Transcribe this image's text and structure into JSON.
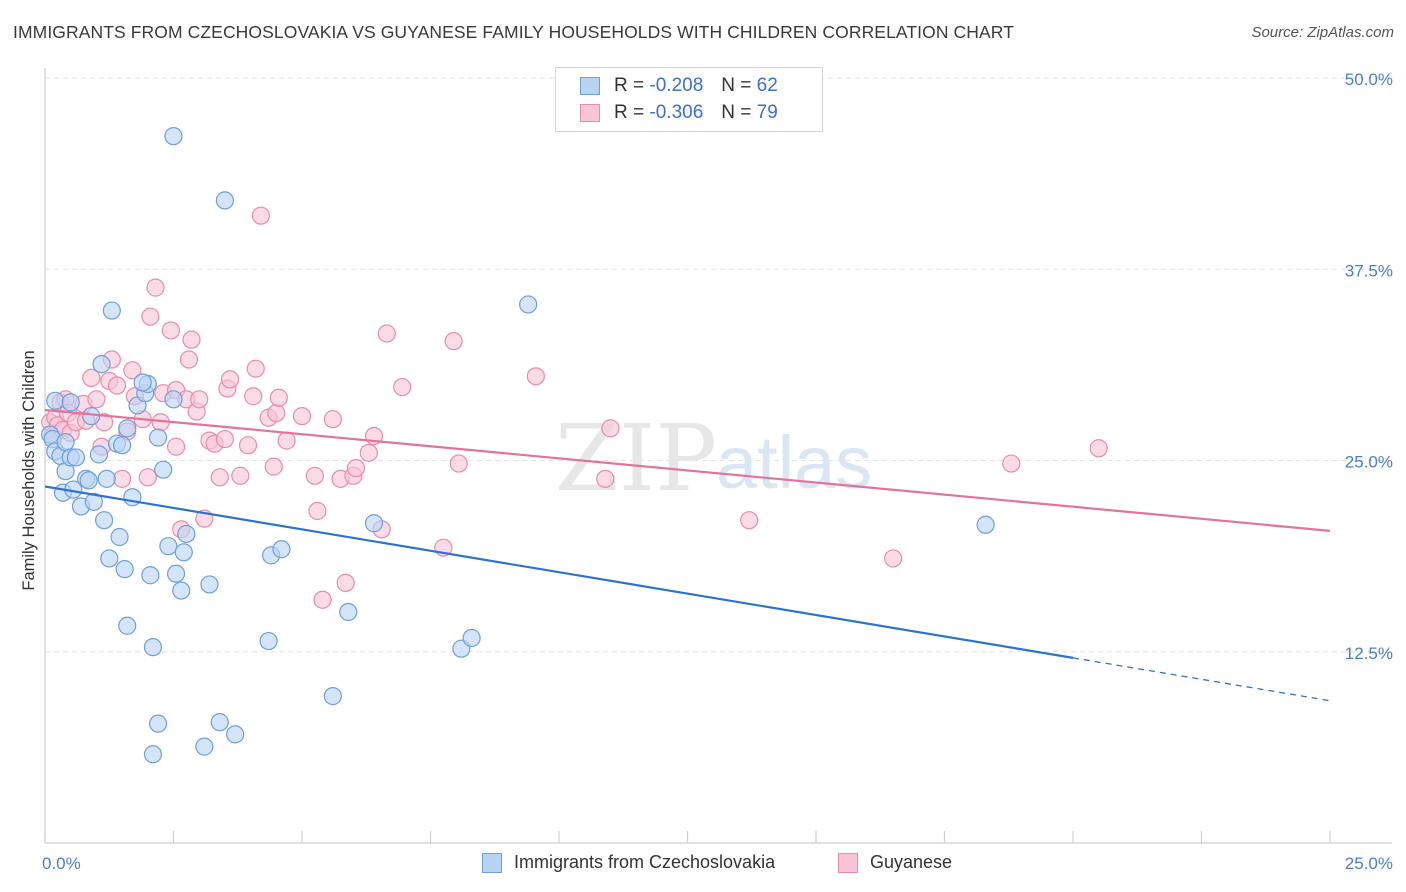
{
  "title": "IMMIGRANTS FROM CZECHOSLOVAKIA VS GUYANESE FAMILY HOUSEHOLDS WITH CHILDREN CORRELATION CHART",
  "source": "Source: ZipAtlas.com",
  "watermark": {
    "zip": "ZIP",
    "atlas": "atlas"
  },
  "legend": {
    "items": [
      {
        "r_label": "R =",
        "r_value": "-0.208",
        "n_label": "N =",
        "n_value": "62"
      },
      {
        "r_label": "R =",
        "r_value": "-0.306",
        "n_label": "N =",
        "n_value": "79"
      }
    ]
  },
  "colors": {
    "blue_fill": "#b9d3f5",
    "blue_stroke": "#6f9fdc",
    "blue_line": "#2f72d2",
    "pink_fill": "#f8c5d5",
    "pink_stroke": "#e98cab",
    "pink_line": "#e2739b",
    "axis_label": "#4a7fd0",
    "grid": "#e3e3e3"
  },
  "chart_data": {
    "type": "scatter",
    "title": "IMMIGRANTS FROM CZECHOSLOVAKIA VS GUYANESE FAMILY HOUSEHOLDS WITH CHILDREN CORRELATION CHART",
    "xlabel": "",
    "ylabel": "Family Households with Children",
    "xlim": [
      0,
      25
    ],
    "ylim": [
      0,
      50
    ],
    "x_tick_labels": [
      "0.0%",
      "25.0%"
    ],
    "y_ticks": [
      12.5,
      25.0,
      37.5,
      50.0
    ],
    "y_tick_labels": [
      "12.5%",
      "25.0%",
      "37.5%",
      "50.0%"
    ],
    "grid": true,
    "legend_position": "top-center",
    "series": [
      {
        "name": "Immigrants from Czechoslovakia",
        "color": "blue",
        "trend": {
          "x0": 0,
          "y0": 23.3,
          "x1": 20,
          "y1": 12.1,
          "dashed_to": 25,
          "dashed_y": 9.3
        },
        "points": [
          [
            0.1,
            26.7
          ],
          [
            0.2,
            28.9
          ],
          [
            0.15,
            26.4
          ],
          [
            0.2,
            25.6
          ],
          [
            0.3,
            25.3
          ],
          [
            0.4,
            26.2
          ],
          [
            0.35,
            22.9
          ],
          [
            0.4,
            24.3
          ],
          [
            0.5,
            25.2
          ],
          [
            0.55,
            23.1
          ],
          [
            0.6,
            25.2
          ],
          [
            0.7,
            22.0
          ],
          [
            0.8,
            23.8
          ],
          [
            0.85,
            23.7
          ],
          [
            0.9,
            27.9
          ],
          [
            0.95,
            22.3
          ],
          [
            1.05,
            25.4
          ],
          [
            1.1,
            31.3
          ],
          [
            1.15,
            21.1
          ],
          [
            1.2,
            23.8
          ],
          [
            1.25,
            18.6
          ],
          [
            1.3,
            34.8
          ],
          [
            1.4,
            26.1
          ],
          [
            1.45,
            20.0
          ],
          [
            1.5,
            26.0
          ],
          [
            1.55,
            17.9
          ],
          [
            1.6,
            27.1
          ],
          [
            1.6,
            14.2
          ],
          [
            1.7,
            22.6
          ],
          [
            1.8,
            28.6
          ],
          [
            1.95,
            29.4
          ],
          [
            2.0,
            30.0
          ],
          [
            2.05,
            17.5
          ],
          [
            2.1,
            12.8
          ],
          [
            2.2,
            7.8
          ],
          [
            2.2,
            26.5
          ],
          [
            2.3,
            24.4
          ],
          [
            2.4,
            19.4
          ],
          [
            2.5,
            46.2
          ],
          [
            2.5,
            29.0
          ],
          [
            2.55,
            17.6
          ],
          [
            2.65,
            16.5
          ],
          [
            2.7,
            19.0
          ],
          [
            2.75,
            20.2
          ],
          [
            3.1,
            6.3
          ],
          [
            3.2,
            16.9
          ],
          [
            3.4,
            7.9
          ],
          [
            3.5,
            42.0
          ],
          [
            3.7,
            7.1
          ],
          [
            4.35,
            13.2
          ],
          [
            4.4,
            18.8
          ],
          [
            4.6,
            19.2
          ],
          [
            5.6,
            9.6
          ],
          [
            5.9,
            15.1
          ],
          [
            6.4,
            20.9
          ],
          [
            2.1,
            5.8
          ],
          [
            8.1,
            12.7
          ],
          [
            8.3,
            13.4
          ],
          [
            9.4,
            35.2
          ],
          [
            18.3,
            20.8
          ],
          [
            1.9,
            30.1
          ],
          [
            0.5,
            28.8
          ]
        ]
      },
      {
        "name": "Guyanese",
        "color": "pink",
        "trend": {
          "x0": 0,
          "y0": 28.3,
          "x1": 25,
          "y1": 20.4
        },
        "points": [
          [
            0.1,
            27.5
          ],
          [
            0.15,
            26.6
          ],
          [
            0.2,
            27.8
          ],
          [
            0.25,
            27.3
          ],
          [
            0.3,
            28.8
          ],
          [
            0.35,
            27.0
          ],
          [
            0.4,
            29.0
          ],
          [
            0.45,
            28.1
          ],
          [
            0.5,
            26.8
          ],
          [
            0.6,
            27.5
          ],
          [
            0.75,
            28.7
          ],
          [
            0.8,
            27.6
          ],
          [
            0.9,
            30.4
          ],
          [
            1.0,
            29.0
          ],
          [
            1.1,
            25.9
          ],
          [
            1.15,
            27.5
          ],
          [
            1.25,
            30.2
          ],
          [
            1.3,
            31.6
          ],
          [
            1.4,
            29.9
          ],
          [
            1.5,
            23.8
          ],
          [
            1.6,
            26.9
          ],
          [
            1.7,
            30.9
          ],
          [
            1.75,
            29.2
          ],
          [
            1.9,
            27.7
          ],
          [
            2.0,
            23.9
          ],
          [
            2.05,
            34.4
          ],
          [
            2.15,
            36.3
          ],
          [
            2.25,
            27.5
          ],
          [
            2.3,
            29.4
          ],
          [
            2.45,
            33.5
          ],
          [
            2.55,
            25.9
          ],
          [
            2.55,
            29.6
          ],
          [
            2.65,
            20.5
          ],
          [
            2.75,
            29.0
          ],
          [
            2.8,
            31.6
          ],
          [
            2.85,
            32.9
          ],
          [
            2.95,
            28.2
          ],
          [
            3.0,
            29.0
          ],
          [
            3.1,
            21.2
          ],
          [
            3.2,
            26.3
          ],
          [
            3.3,
            26.1
          ],
          [
            3.4,
            23.9
          ],
          [
            3.5,
            26.4
          ],
          [
            3.55,
            29.7
          ],
          [
            3.6,
            30.3
          ],
          [
            3.8,
            24.0
          ],
          [
            3.95,
            26.0
          ],
          [
            4.05,
            29.2
          ],
          [
            4.1,
            31.0
          ],
          [
            4.2,
            41.0
          ],
          [
            4.35,
            27.8
          ],
          [
            4.45,
            24.6
          ],
          [
            4.5,
            28.1
          ],
          [
            4.55,
            29.1
          ],
          [
            4.7,
            26.3
          ],
          [
            5.0,
            27.9
          ],
          [
            5.25,
            24.0
          ],
          [
            5.3,
            21.7
          ],
          [
            5.4,
            15.9
          ],
          [
            5.6,
            27.7
          ],
          [
            5.75,
            23.8
          ],
          [
            5.85,
            17.0
          ],
          [
            6.0,
            24.0
          ],
          [
            6.05,
            24.5
          ],
          [
            6.3,
            25.5
          ],
          [
            6.4,
            26.6
          ],
          [
            6.55,
            20.5
          ],
          [
            6.65,
            33.3
          ],
          [
            6.95,
            29.8
          ],
          [
            7.75,
            19.3
          ],
          [
            7.95,
            32.8
          ],
          [
            8.05,
            24.8
          ],
          [
            9.55,
            30.5
          ],
          [
            10.9,
            23.8
          ],
          [
            11.0,
            27.1
          ],
          [
            13.7,
            21.1
          ],
          [
            16.5,
            18.6
          ],
          [
            18.8,
            24.8
          ],
          [
            20.5,
            25.8
          ]
        ]
      }
    ]
  },
  "bottom_legend": {
    "blue_label": "Immigrants from Czechoslovakia",
    "pink_label": "Guyanese"
  }
}
